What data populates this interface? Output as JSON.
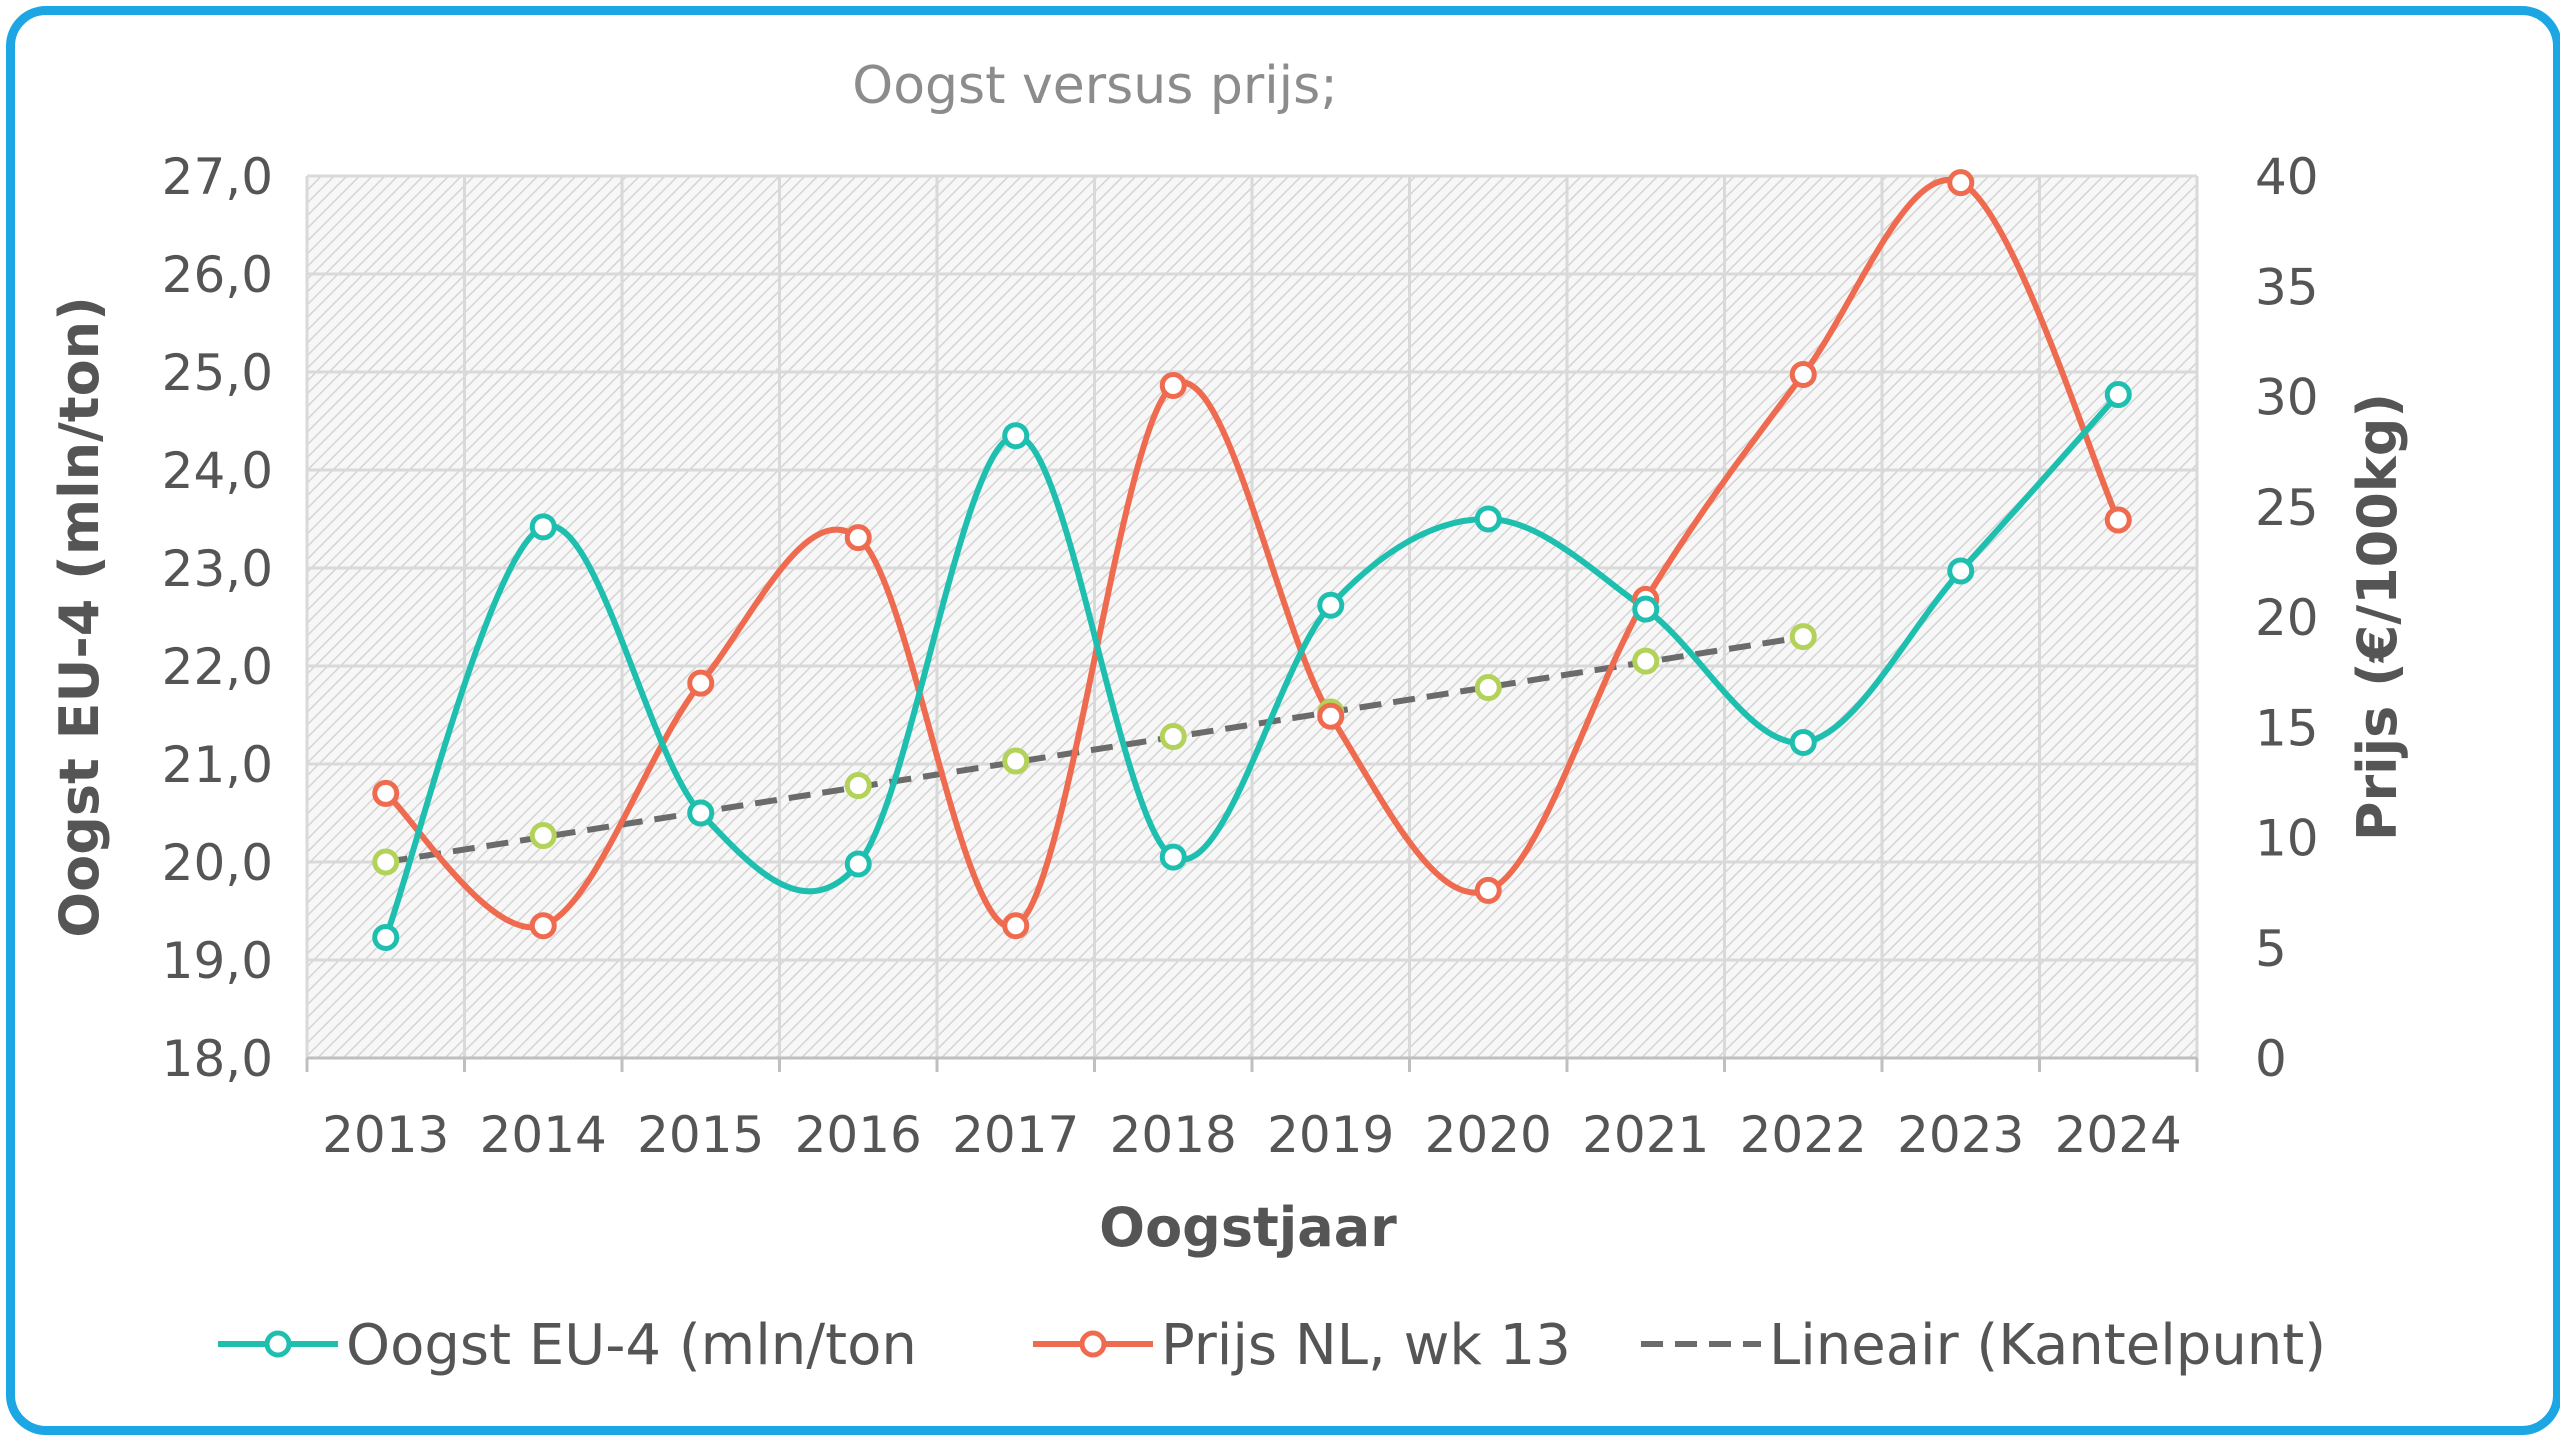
{
  "chart_data": {
    "type": "line",
    "title": "Oogst versus prijs;",
    "xlabel": "Oogstjaar",
    "ylabel": "Oogst EU-4 (mln/ton)",
    "y2label": "Prijs (€/100kg)",
    "categories": [
      "2013",
      "2014",
      "2015",
      "2016",
      "2017",
      "2018",
      "2019",
      "2020",
      "2021",
      "2022",
      "2023",
      "2024"
    ],
    "ylim": [
      18,
      27
    ],
    "y_ticks": [
      "18,0",
      "19,0",
      "20,0",
      "21,0",
      "22,0",
      "23,0",
      "24,0",
      "25,0",
      "26,0",
      "27,0"
    ],
    "y2lim": [
      0,
      40
    ],
    "y2_ticks": [
      "0",
      "5",
      "10",
      "15",
      "20",
      "25",
      "30",
      "35",
      "40"
    ],
    "grid": true,
    "legend_position": "bottom",
    "series": [
      {
        "name": "Oogst EU-4 (mln/ton",
        "axis": "left",
        "color": "#1fbfb0",
        "smooth": true,
        "values": [
          19.23,
          23.42,
          20.5,
          19.98,
          24.35,
          20.05,
          22.62,
          23.5,
          22.58,
          21.22,
          22.97,
          24.77
        ]
      },
      {
        "name": "Prijs NL, wk 13",
        "axis": "right",
        "color": "#ee6b50",
        "smooth": true,
        "values": [
          12.0,
          6.0,
          17.0,
          23.6,
          6.0,
          30.5,
          15.5,
          7.6,
          20.8,
          31.0,
          39.7,
          24.4
        ]
      },
      {
        "name": "Kantelpunt",
        "axis": "left",
        "color": "#b2d25a",
        "markers_only": true,
        "values": [
          20.0,
          20.27,
          20.5,
          20.78,
          21.03,
          21.28,
          21.53,
          21.78,
          22.05,
          22.3,
          null,
          null
        ]
      },
      {
        "name": "Lineair (Kantelpunt)",
        "axis": "left",
        "color": "#6b6b6b",
        "dashed": true,
        "trendline": true,
        "values": [
          20.0,
          20.255,
          20.51,
          20.765,
          21.02,
          21.275,
          21.53,
          21.785,
          22.04,
          22.295,
          null,
          null
        ]
      }
    ],
    "legend": [
      "Oogst EU-4 (mln/ton",
      "Prijs NL, wk 13",
      "Lineair (Kantelpunt)"
    ]
  }
}
